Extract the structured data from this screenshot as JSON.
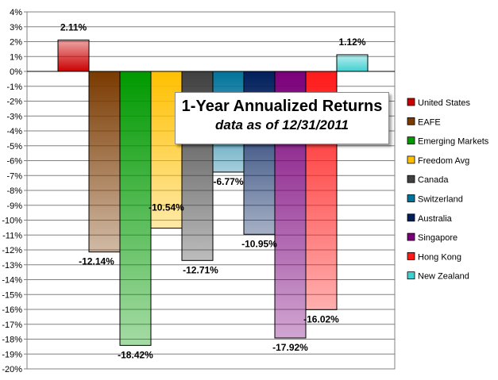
{
  "chart_data": {
    "type": "bar",
    "title": "1-Year Annualized Returns",
    "subtitle": "data as of 12/31/2011",
    "categories": [
      "United States",
      "EAFE",
      "Emerging Markets",
      "Freedom Avg",
      "Canada",
      "Switzerland",
      "Australia",
      "Singapore",
      "Hong Kong",
      "New Zealand"
    ],
    "values": [
      2.11,
      -12.14,
      -18.42,
      -10.54,
      -12.71,
      -6.77,
      -10.95,
      -17.92,
      -16.02,
      1.12
    ],
    "value_labels": [
      "2.11%",
      "-12.14%",
      "-18.42%",
      "-10.54%",
      "-12.71%",
      "-6.77%",
      "-10.95%",
      "-17.92%",
      "-16.02%",
      "1.12%"
    ],
    "ylim": [
      -20,
      4
    ],
    "y_ticks": [
      "4%",
      "3%",
      "2%",
      "1%",
      "0%",
      "-1%",
      "-2%",
      "-3%",
      "-4%",
      "-5%",
      "-6%",
      "-7%",
      "-8%",
      "-9%",
      "-10%",
      "-11%",
      "-12%",
      "-13%",
      "-14%",
      "-15%",
      "-16%",
      "-17%",
      "-18%",
      "-19%",
      "-20%"
    ],
    "grid": true,
    "legend_position": "right",
    "colors": [
      "#cc0000",
      "#7a3a00",
      "#009900",
      "#ffc000",
      "#404040",
      "#00739a",
      "#001f5c",
      "#7a007a",
      "#ff1a1a",
      "#40d0d0"
    ]
  }
}
